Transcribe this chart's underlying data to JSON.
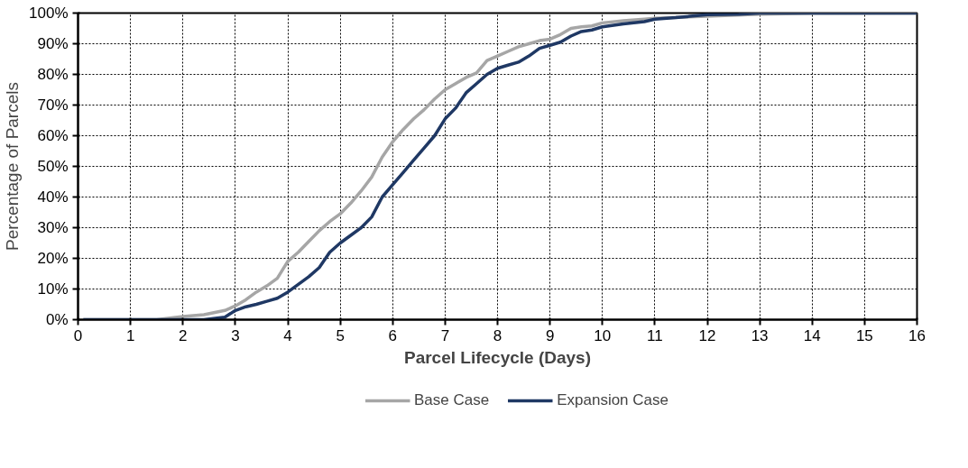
{
  "chart_data": {
    "type": "line",
    "xlabel": "Parcel Lifecycle (Days)",
    "ylabel": "Percentage of Parcels",
    "xlim": [
      0,
      16
    ],
    "xticks": [
      0,
      1,
      2,
      3,
      4,
      5,
      6,
      7,
      8,
      9,
      10,
      11,
      12,
      13,
      14,
      15,
      16
    ],
    "ylim": [
      0,
      100
    ],
    "yticks": [
      {
        "value": 0,
        "label": "0%"
      },
      {
        "value": 10,
        "label": "10%"
      },
      {
        "value": 20,
        "label": "20%"
      },
      {
        "value": 30,
        "label": "30%"
      },
      {
        "value": 40,
        "label": "40%"
      },
      {
        "value": 50,
        "label": "50%"
      },
      {
        "value": 60,
        "label": "60%"
      },
      {
        "value": 70,
        "label": "70%"
      },
      {
        "value": 80,
        "label": "80%"
      },
      {
        "value": 90,
        "label": "90%"
      },
      {
        "value": 100,
        "label": "100%"
      }
    ],
    "grid": true,
    "legend": "bottom",
    "marker": "none",
    "line_style": "solid",
    "series": [
      {
        "name": "Base Case",
        "color": "#a6a6a6",
        "x": [
          0.1,
          1.5,
          2,
          2.4,
          2.8,
          3,
          3.2,
          3.4,
          3.6,
          3.8,
          4,
          4.2,
          4.4,
          4.6,
          4.8,
          5,
          5.2,
          5.4,
          5.6,
          5.8,
          6,
          6.2,
          6.4,
          6.6,
          6.8,
          7,
          7.2,
          7.4,
          7.6,
          7.8,
          8,
          8.2,
          8.4,
          8.6,
          8.8,
          9,
          9.2,
          9.4,
          9.6,
          9.8,
          10,
          10.4,
          10.8,
          11,
          12,
          13,
          14,
          16
        ],
        "values": [
          0,
          0,
          1,
          1.6,
          3,
          4.5,
          6.5,
          9,
          11,
          13.5,
          19,
          22,
          25.5,
          29,
          32,
          34.5,
          38,
          42,
          46.5,
          53,
          58,
          62,
          65.5,
          68.5,
          72,
          75,
          77,
          79,
          80.5,
          84.5,
          86,
          87.5,
          89,
          90,
          91,
          91.5,
          93,
          95,
          95.5,
          95.8,
          96.8,
          97.5,
          98,
          98.3,
          99,
          99.6,
          99.9,
          100
        ]
      },
      {
        "name": "Expansion Case",
        "color": "#1f3864",
        "x": [
          0.1,
          2.4,
          2.8,
          3,
          3.2,
          3.4,
          3.6,
          3.8,
          4,
          4.2,
          4.4,
          4.6,
          4.8,
          5,
          5.2,
          5.4,
          5.6,
          5.8,
          6,
          6.2,
          6.4,
          6.6,
          6.8,
          7,
          7.2,
          7.4,
          7.6,
          7.8,
          8,
          8.2,
          8.4,
          8.6,
          8.8,
          9,
          9.2,
          9.4,
          9.6,
          9.8,
          10,
          10.4,
          10.8,
          11,
          11.4,
          12,
          12.6,
          13,
          16
        ],
        "values": [
          0,
          0,
          0.8,
          3,
          4.2,
          5,
          6,
          7,
          9,
          11.5,
          14,
          17,
          22,
          25,
          27.5,
          30,
          33.5,
          40,
          44,
          48,
          52,
          56,
          60,
          65.5,
          69,
          74,
          77,
          80,
          82,
          83,
          84,
          86,
          88.5,
          89.5,
          90.5,
          92.5,
          94,
          94.5,
          95.5,
          96.5,
          97.2,
          98,
          98.5,
          99.5,
          99.6,
          100,
          100
        ]
      }
    ]
  }
}
